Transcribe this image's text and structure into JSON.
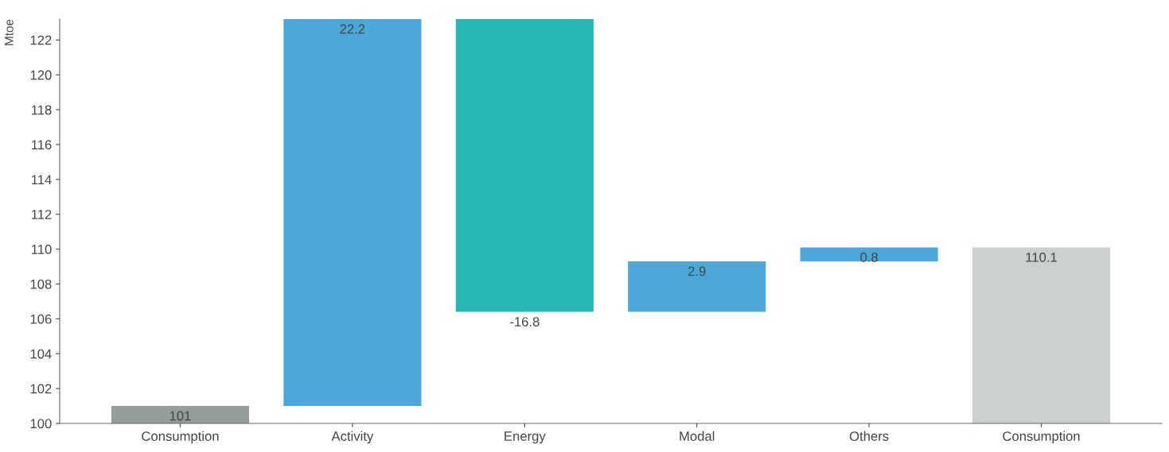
{
  "chart_data": {
    "type": "bar",
    "ylabel": "Mtoe",
    "categories": [
      "Consumption",
      "Activity",
      "Energy",
      "Modal",
      "Others",
      "Consumption"
    ],
    "values": [
      101,
      22.2,
      -16.8,
      2.9,
      0.8,
      110.1
    ],
    "base": [
      0,
      101,
      123.2,
      106.4,
      109.3,
      0
    ],
    "colors": [
      "#949e99",
      "#4ba8d8",
      "#27b6b4",
      "#4ba8d8",
      "#4ba8d8",
      "#cbd0ce"
    ],
    "data_labels": true,
    "ylim": [
      100,
      123.2
    ],
    "yticks": [
      100,
      102,
      104,
      106,
      108,
      110,
      112,
      114,
      116,
      118,
      120,
      122
    ],
    "grid": false,
    "legend": false
  }
}
